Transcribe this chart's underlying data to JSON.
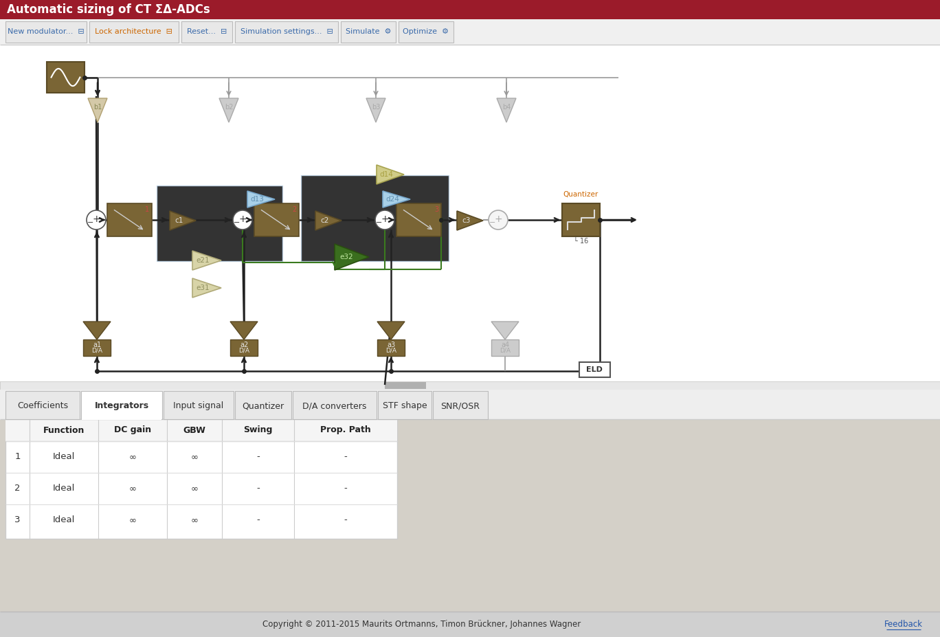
{
  "title": "Automatic sizing of CT ΣΔ-ADCs",
  "title_bg": "#9b1b2a",
  "title_fg": "#ffffff",
  "main_bg": "#ffffff",
  "toolbar_bg": "#f0f0f0",
  "footer_bg": "#d0d0d0",
  "tabs": [
    "Coefficients",
    "Integrators",
    "Input signal",
    "Quantizer",
    "D/A converters",
    "STF shape",
    "SNR/OSR"
  ],
  "active_tab": 1,
  "table_header": [
    "",
    "Function",
    "DC gain",
    "GBW",
    "Swing",
    "Prop. Path"
  ],
  "table_rows": [
    [
      "1",
      "Ideal",
      "∞",
      "∞",
      "-",
      "-"
    ],
    [
      "2",
      "Ideal",
      "∞",
      "∞",
      "-",
      "-"
    ],
    [
      "3",
      "Ideal",
      "∞",
      "∞",
      "-",
      "-"
    ]
  ],
  "footer_text": "Copyright © 2011-2015 Maurits Ortmanns, Timon Brückner, Johannes Wagner",
  "footer_link": "Feedback",
  "block_brown": "#7a6535",
  "block_brown_edge": "#5a4a25",
  "ghost_brown": "#d4c9a8",
  "ghost_edge": "#b0a070",
  "ghost_grey": "#cccccc",
  "ghost_grey_edge": "#aaaaaa",
  "green_fill": "#3a6e1e",
  "green_edge": "#2a4e10",
  "green_line": "#3a7a1e",
  "ghost_blue": "#a0c8e0",
  "ghost_blue_fill": "#c0dff0",
  "ghost_olive": "#c8c870",
  "signal_dark": "#222222",
  "signal_grey": "#999999"
}
